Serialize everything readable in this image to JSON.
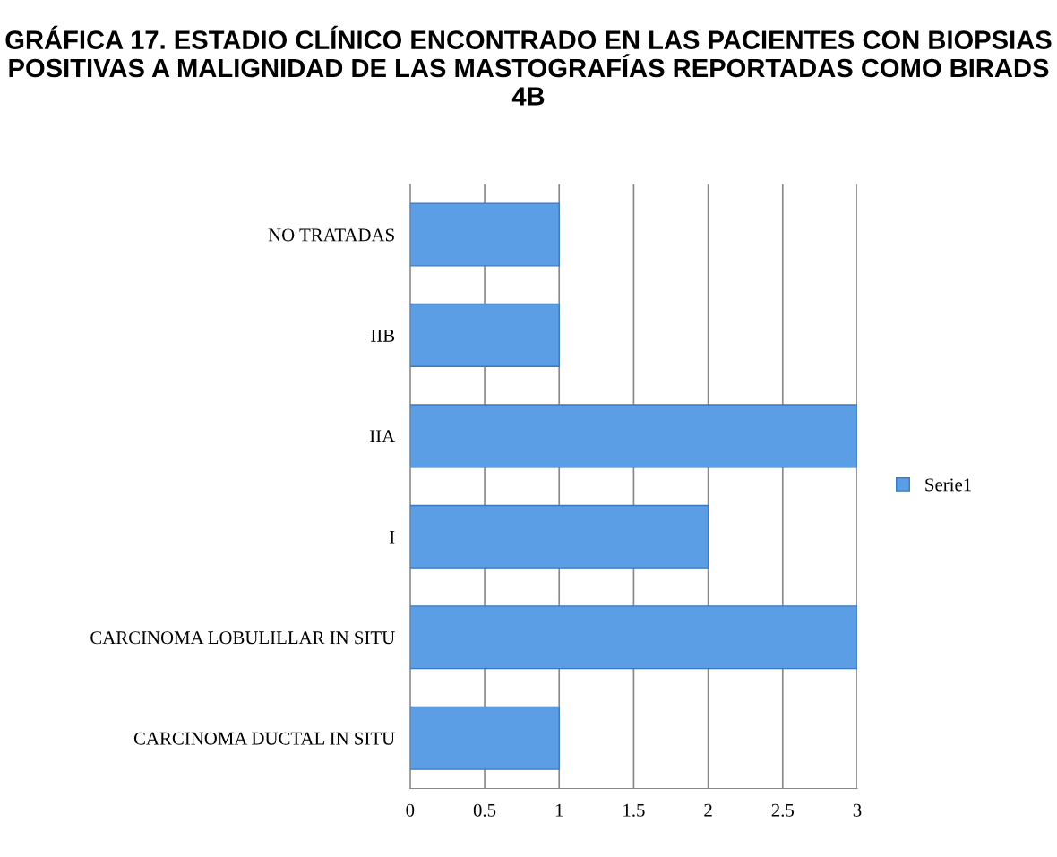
{
  "chart_data": {
    "type": "bar",
    "orientation": "horizontal",
    "title": "GRÁFICA 17. ESTADIO CLÍNICO ENCONTRADO EN LAS PACIENTES CON BIOPSIAS POSITIVAS A MALIGNIDAD DE LAS MASTOGRAFÍAS REPORTADAS COMO BIRADS 4B",
    "categories": [
      "NO TRATADAS",
      "IIB",
      "IIA",
      "I",
      "CARCINOMA LOBULILLAR IN SITU",
      "CARCINOMA DUCTAL IN SITU"
    ],
    "series": [
      {
        "name": "Serie1",
        "color": "#5b9ee6",
        "values": [
          1,
          1,
          3,
          2,
          3,
          1
        ]
      }
    ],
    "xlim": [
      0,
      3
    ],
    "xticks": [
      0,
      0.5,
      1,
      1.5,
      2,
      2.5,
      3
    ],
    "grid": "x",
    "legend": "right"
  }
}
